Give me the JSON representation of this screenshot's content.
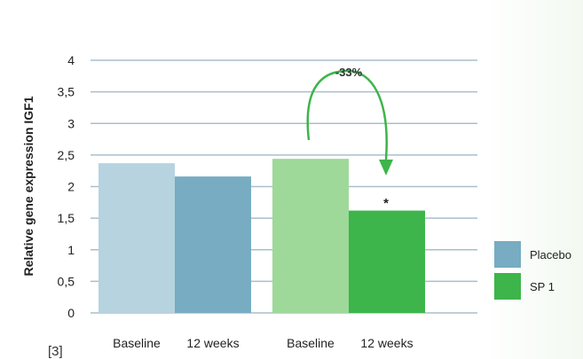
{
  "chart_data": {
    "type": "bar",
    "ylabel": "Relative gene expression IGF1",
    "ylim": [
      0,
      4
    ],
    "yticks": [
      "0",
      "0,5",
      "1",
      "1,5",
      "2",
      "2,5",
      "3",
      "3,5",
      "4"
    ],
    "ytick_values": [
      0,
      0.5,
      1,
      1.5,
      2,
      2.5,
      3,
      3.5,
      4
    ],
    "grid": true,
    "categories": [
      "Baseline",
      "12 weeks",
      "Baseline",
      "12 weeks"
    ],
    "groups": [
      {
        "name": "Placebo",
        "bars": [
          {
            "label": "Baseline",
            "value": 2.37,
            "color": "#b7d3e0"
          },
          {
            "label": "12 weeks",
            "value": 2.16,
            "color": "#77acc2"
          }
        ]
      },
      {
        "name": "SP1",
        "bars": [
          {
            "label": "Baseline",
            "value": 2.44,
            "color": "#9fd99a"
          },
          {
            "label": "12 weeks",
            "value": 1.62,
            "color": "#3db54a"
          }
        ]
      }
    ],
    "annotations": {
      "change": "-33%",
      "significance": "*"
    },
    "legend": [
      {
        "label": "Placebo",
        "color": "#77acc2"
      },
      {
        "label": "SP 1",
        "color": "#3db54a"
      }
    ],
    "legend_position": "right",
    "arrow_color": "#3db54a"
  },
  "reference": "[3]"
}
